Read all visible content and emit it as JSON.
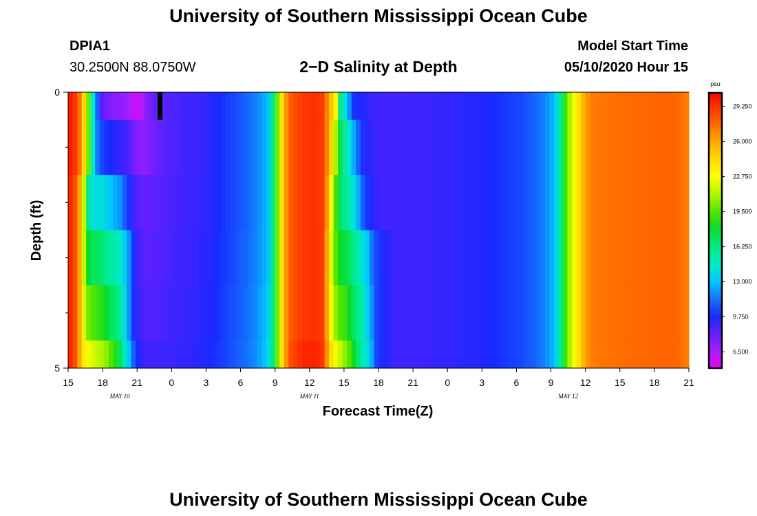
{
  "header": {
    "title": "University of Southern Mississippi Ocean Cube",
    "station_id": "DPIA1",
    "coordinates": "30.2500N 88.0750W",
    "plot_title": "2−D Salinity at Depth",
    "model_start_label": "Model Start Time",
    "model_start_value": "05/10/2020 Hour 15"
  },
  "footer": {
    "title": "University of Southern Mississippi Ocean Cube"
  },
  "chart_data": {
    "type": "heatmap",
    "title": "2-D Salinity at Depth",
    "xlabel": "Forecast Time(Z)",
    "ylabel": "Depth (ft)",
    "ylim": [
      0,
      5
    ],
    "y_tick_labels": [
      "0",
      "5"
    ],
    "y_minor_ticks": 4,
    "x_range_hours": [
      0,
      54
    ],
    "x_tick_labels": [
      "15",
      "18",
      "21",
      "0",
      "3",
      "6",
      "9",
      "12",
      "15",
      "18",
      "21",
      "0",
      "3",
      "6",
      "9",
      "12",
      "15",
      "18",
      "21"
    ],
    "date_labels": [
      {
        "text": "MAY  10",
        "hour": 4.5
      },
      {
        "text": "MAY  11",
        "hour": 21
      },
      {
        "text": "MAY  12",
        "hour": 43.5
      }
    ],
    "colorbar": {
      "unit": "psu",
      "min": 5.0,
      "max": 30.5,
      "tick_labels": [
        "29.250",
        "26.000",
        "22.750",
        "19.500",
        "16.250",
        "13.000",
        "9.750",
        "6.500"
      ],
      "tick_values": [
        29.25,
        26.0,
        22.75,
        19.5,
        16.25,
        13.0,
        9.75,
        6.5
      ]
    },
    "depth_layers": [
      "0.0-0.5",
      "0.5-1.5",
      "1.5-2.5",
      "2.5-3.5",
      "3.5-4.5",
      "4.5-5.0"
    ],
    "salinity_psu": [
      [
        29.8,
        29.2,
        27.5,
        24.5,
        20.0,
        14.5,
        11.0,
        8.5,
        7.8,
        7.5,
        7.3,
        7.2,
        7.0,
        6.6,
        6.0,
        5.8,
        6.3,
        7.5,
        8.0,
        8.3,
        8.4,
        8.5,
        8.6,
        8.7,
        8.8,
        8.9,
        8.95,
        9.0,
        9.05,
        9.1,
        9.2,
        9.4,
        9.6,
        9.8,
        10.0,
        10.2,
        10.4,
        10.6,
        10.8,
        11.0,
        11.3,
        11.6,
        12.0,
        12.5,
        13.0,
        16.0,
        20.0,
        24.0,
        26.5,
        28.0,
        28.5,
        28.9,
        29.1,
        29.2,
        29.3,
        29.2,
        29.0,
        27.0,
        25.0,
        23.0,
        16.0,
        14.0,
        12.0,
        10.0,
        9.8,
        9.5,
        9.3,
        9.1,
        9.0,
        9.0,
        8.9,
        8.9,
        8.9,
        8.9,
        8.95,
        9.0,
        9.0,
        9.0,
        9.05,
        9.1,
        9.1,
        9.15,
        9.2,
        9.2,
        9.25,
        9.3,
        9.35,
        9.4,
        9.45,
        9.5,
        9.55,
        9.6,
        9.65,
        9.7,
        9.8,
        9.9,
        10.0,
        10.1,
        10.2,
        10.3,
        10.4,
        10.6,
        10.8,
        11.0,
        11.3,
        11.6,
        12.0,
        12.5,
        13.5,
        16.0,
        19.0,
        21.0,
        22.5,
        24.0,
        25.5,
        26.5,
        27.0,
        27.2,
        27.3,
        27.35,
        27.4,
        27.45,
        27.5,
        27.55,
        27.6,
        27.6,
        27.65,
        27.7,
        27.7,
        27.7,
        27.75,
        27.8,
        27.8,
        27.8,
        27.8,
        27.7,
        27.4,
        27.0
      ],
      [
        29.8,
        29.2,
        27.5,
        24.5,
        20.0,
        14.5,
        11.5,
        10.5,
        10.0,
        9.7,
        9.4,
        9.2,
        9.0,
        8.6,
        8.0,
        7.5,
        7.2,
        7.3,
        7.6,
        8.0,
        8.3,
        8.5,
        8.6,
        8.7,
        8.8,
        8.9,
        8.95,
        9.0,
        9.05,
        9.1,
        9.2,
        9.4,
        9.6,
        9.8,
        10.0,
        10.2,
        10.4,
        10.6,
        10.8,
        11.0,
        11.3,
        11.6,
        12.0,
        12.5,
        13.0,
        16.0,
        20.0,
        24.0,
        26.5,
        28.0,
        28.5,
        28.9,
        29.1,
        29.2,
        29.3,
        29.2,
        29.0,
        27.0,
        24.5,
        21.0,
        17.5,
        15.5,
        14.0,
        12.5,
        11.0,
        10.0,
        9.5,
        9.2,
        9.0,
        8.9,
        8.9,
        8.9,
        8.9,
        8.9,
        8.95,
        9.0,
        9.0,
        9.0,
        9.05,
        9.1,
        9.1,
        9.15,
        9.2,
        9.2,
        9.25,
        9.3,
        9.35,
        9.4,
        9.45,
        9.5,
        9.55,
        9.6,
        9.65,
        9.7,
        9.8,
        9.9,
        10.0,
        10.1,
        10.2,
        10.3,
        10.4,
        10.6,
        10.8,
        11.0,
        11.3,
        11.6,
        12.0,
        12.5,
        13.5,
        16.0,
        19.0,
        21.0,
        22.5,
        24.0,
        25.5,
        26.5,
        27.0,
        27.2,
        27.3,
        27.35,
        27.4,
        27.45,
        27.5,
        27.55,
        27.6,
        27.6,
        27.65,
        27.7,
        27.7,
        27.7,
        27.75,
        27.8,
        27.8,
        27.8,
        27.8,
        27.7,
        27.4,
        27.0
      ],
      [
        29.5,
        28.5,
        26.0,
        21.5,
        16.0,
        14.0,
        14.0,
        14.0,
        13.5,
        13.0,
        12.5,
        12.0,
        11.0,
        10.0,
        9.0,
        8.5,
        8.3,
        8.2,
        8.3,
        8.4,
        8.5,
        8.6,
        8.7,
        8.8,
        8.9,
        8.95,
        9.0,
        9.05,
        9.1,
        9.2,
        9.3,
        9.4,
        9.6,
        9.8,
        10.0,
        10.2,
        10.4,
        10.6,
        10.8,
        11.0,
        11.3,
        11.6,
        12.0,
        12.5,
        13.0,
        16.0,
        20.0,
        24.0,
        26.5,
        28.0,
        28.5,
        28.9,
        29.1,
        29.2,
        29.3,
        29.2,
        29.0,
        26.5,
        23.0,
        19.0,
        17.0,
        16.0,
        15.0,
        14.0,
        12.5,
        11.0,
        10.0,
        9.5,
        9.2,
        9.0,
        8.9,
        8.9,
        8.9,
        8.9,
        8.95,
        9.0,
        9.0,
        9.0,
        9.05,
        9.1,
        9.1,
        9.15,
        9.2,
        9.2,
        9.25,
        9.3,
        9.35,
        9.4,
        9.45,
        9.5,
        9.55,
        9.6,
        9.65,
        9.7,
        9.8,
        9.9,
        10.0,
        10.1,
        10.2,
        10.3,
        10.4,
        10.6,
        10.8,
        11.0,
        11.3,
        11.6,
        12.0,
        12.5,
        13.5,
        16.0,
        19.0,
        21.0,
        22.5,
        24.0,
        25.5,
        26.5,
        27.0,
        27.2,
        27.3,
        27.35,
        27.4,
        27.45,
        27.5,
        27.55,
        27.6,
        27.6,
        27.65,
        27.7,
        27.7,
        27.7,
        27.75,
        27.8,
        27.8,
        27.8,
        27.8,
        27.7,
        27.4,
        27.0
      ],
      [
        29.5,
        28.5,
        26.0,
        21.5,
        18.0,
        17.0,
        17.0,
        16.5,
        16.0,
        15.5,
        15.0,
        14.5,
        13.5,
        12.0,
        10.0,
        9.0,
        8.6,
        8.4,
        8.4,
        8.5,
        8.6,
        8.7,
        8.8,
        8.9,
        8.95,
        9.0,
        9.05,
        9.1,
        9.2,
        9.3,
        9.4,
        9.5,
        9.7,
        9.9,
        10.1,
        10.3,
        10.5,
        10.7,
        10.9,
        11.1,
        11.4,
        11.7,
        12.0,
        12.5,
        13.0,
        16.0,
        20.0,
        24.0,
        26.5,
        28.0,
        28.5,
        28.9,
        29.1,
        29.2,
        29.3,
        29.2,
        29.0,
        26.0,
        22.0,
        19.5,
        18.0,
        17.5,
        17.0,
        16.0,
        15.0,
        14.0,
        13.0,
        11.5,
        10.5,
        10.0,
        9.6,
        9.3,
        9.1,
        9.0,
        9.0,
        9.0,
        9.0,
        9.0,
        9.05,
        9.1,
        9.1,
        9.15,
        9.2,
        9.2,
        9.25,
        9.3,
        9.35,
        9.4,
        9.45,
        9.5,
        9.55,
        9.6,
        9.65,
        9.7,
        9.8,
        9.9,
        10.0,
        10.1,
        10.2,
        10.3,
        10.4,
        10.6,
        10.8,
        11.0,
        11.3,
        11.6,
        12.0,
        12.5,
        13.5,
        16.0,
        19.0,
        21.0,
        22.5,
        24.0,
        25.5,
        26.5,
        27.0,
        27.2,
        27.3,
        27.35,
        27.4,
        27.45,
        27.5,
        27.55,
        27.6,
        27.6,
        27.65,
        27.7,
        27.7,
        27.7,
        27.75,
        27.8,
        27.8,
        27.8,
        27.8,
        27.7,
        27.4,
        27.0
      ],
      [
        29.5,
        28.5,
        26.0,
        22.0,
        20.0,
        19.5,
        19.0,
        18.5,
        18.0,
        17.0,
        16.5,
        15.5,
        14.0,
        12.0,
        10.0,
        9.2,
        8.8,
        8.6,
        8.5,
        8.6,
        8.7,
        8.8,
        8.9,
        9.0,
        9.0,
        9.05,
        9.1,
        9.2,
        9.3,
        9.4,
        9.5,
        9.6,
        9.8,
        10.0,
        10.2,
        10.4,
        10.6,
        10.8,
        11.0,
        11.2,
        11.5,
        11.8,
        12.2,
        12.7,
        13.5,
        16.0,
        20.0,
        24.0,
        26.5,
        28.0,
        28.5,
        28.9,
        29.1,
        29.2,
        29.3,
        29.2,
        29.0,
        26.0,
        23.0,
        20.5,
        19.5,
        19.0,
        18.0,
        17.0,
        16.0,
        15.0,
        13.5,
        12.0,
        10.5,
        10.0,
        9.6,
        9.3,
        9.1,
        9.0,
        9.0,
        9.0,
        9.0,
        9.0,
        9.05,
        9.1,
        9.1,
        9.15,
        9.2,
        9.2,
        9.25,
        9.3,
        9.35,
        9.4,
        9.45,
        9.5,
        9.55,
        9.6,
        9.65,
        9.7,
        9.8,
        9.9,
        10.0,
        10.1,
        10.2,
        10.3,
        10.4,
        10.6,
        10.8,
        11.0,
        11.3,
        11.6,
        12.0,
        12.5,
        13.5,
        16.0,
        19.0,
        21.0,
        22.5,
        24.0,
        25.5,
        26.5,
        27.0,
        27.2,
        27.3,
        27.35,
        27.4,
        27.45,
        27.5,
        27.55,
        27.6,
        27.6,
        27.65,
        27.7,
        27.7,
        27.7,
        27.75,
        27.8,
        27.8,
        27.8,
        27.8,
        27.7,
        27.4,
        27.0
      ],
      [
        29.5,
        28.5,
        26.0,
        23.5,
        22.5,
        22.0,
        21.5,
        21.0,
        20.5,
        19.5,
        18.5,
        17.0,
        15.0,
        13.0,
        11.0,
        9.8,
        9.3,
        9.0,
        8.9,
        8.9,
        9.0,
        9.0,
        9.05,
        9.1,
        9.15,
        9.2,
        9.25,
        9.3,
        9.4,
        9.5,
        9.6,
        9.7,
        9.9,
        10.1,
        10.3,
        10.5,
        10.7,
        10.9,
        11.1,
        11.3,
        11.6,
        11.9,
        12.3,
        12.8,
        13.8,
        16.0,
        20.0,
        24.0,
        26.5,
        28.5,
        29.0,
        29.3,
        29.5,
        29.6,
        29.6,
        29.5,
        29.2,
        26.5,
        24.0,
        22.5,
        21.5,
        20.5,
        19.5,
        18.0,
        16.5,
        15.0,
        14.0,
        12.5,
        10.5,
        10.0,
        9.6,
        9.3,
        9.1,
        9.0,
        9.0,
        9.0,
        9.0,
        9.0,
        9.05,
        9.1,
        9.1,
        9.15,
        9.2,
        9.2,
        9.25,
        9.3,
        9.35,
        9.4,
        9.45,
        9.5,
        9.55,
        9.6,
        9.65,
        9.7,
        9.8,
        9.9,
        10.0,
        10.1,
        10.2,
        10.3,
        10.4,
        10.6,
        10.8,
        11.0,
        11.3,
        11.6,
        12.0,
        12.5,
        13.5,
        16.0,
        19.0,
        21.0,
        22.5,
        24.0,
        25.5,
        26.5,
        27.0,
        27.2,
        27.3,
        27.35,
        27.4,
        27.45,
        27.5,
        27.55,
        27.6,
        27.6,
        27.65,
        27.7,
        27.7,
        27.7,
        27.75,
        27.8,
        27.8,
        27.8,
        27.8,
        27.7,
        27.4,
        27.0
      ]
    ]
  }
}
